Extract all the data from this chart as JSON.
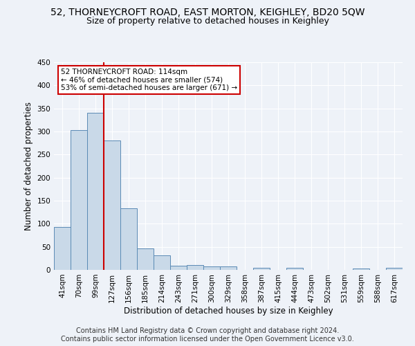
{
  "title_line1": "52, THORNEYCROFT ROAD, EAST MORTON, KEIGHLEY, BD20 5QW",
  "title_line2": "Size of property relative to detached houses in Keighley",
  "xlabel": "Distribution of detached houses by size in Keighley",
  "ylabel": "Number of detached properties",
  "footer_line1": "Contains HM Land Registry data © Crown copyright and database right 2024.",
  "footer_line2": "Contains public sector information licensed under the Open Government Licence v3.0.",
  "categories": [
    "41sqm",
    "70sqm",
    "99sqm",
    "127sqm",
    "156sqm",
    "185sqm",
    "214sqm",
    "243sqm",
    "271sqm",
    "300sqm",
    "329sqm",
    "358sqm",
    "387sqm",
    "415sqm",
    "444sqm",
    "473sqm",
    "502sqm",
    "531sqm",
    "559sqm",
    "588sqm",
    "617sqm"
  ],
  "values": [
    93,
    303,
    340,
    280,
    133,
    47,
    32,
    9,
    10,
    7,
    8,
    0,
    4,
    0,
    4,
    0,
    0,
    0,
    3,
    0,
    4
  ],
  "bar_color": "#c9d9e8",
  "bar_edge_color": "#5a8ab5",
  "property_line_x": 2.5,
  "annotation_text_line1": "52 THORNEYCROFT ROAD: 114sqm",
  "annotation_text_line2": "← 46% of detached houses are smaller (574)",
  "annotation_text_line3": "53% of semi-detached houses are larger (671) →",
  "annotation_box_color": "#ffffff",
  "annotation_box_edge_color": "#cc0000",
  "vline_color": "#cc0000",
  "ylim": [
    0,
    450
  ],
  "yticks": [
    0,
    50,
    100,
    150,
    200,
    250,
    300,
    350,
    400,
    450
  ],
  "background_color": "#eef2f8",
  "grid_color": "#ffffff",
  "title1_fontsize": 10,
  "title2_fontsize": 9,
  "axis_label_fontsize": 8.5,
  "tick_fontsize": 7.5,
  "annotation_fontsize": 7.5,
  "footer_fontsize": 7
}
